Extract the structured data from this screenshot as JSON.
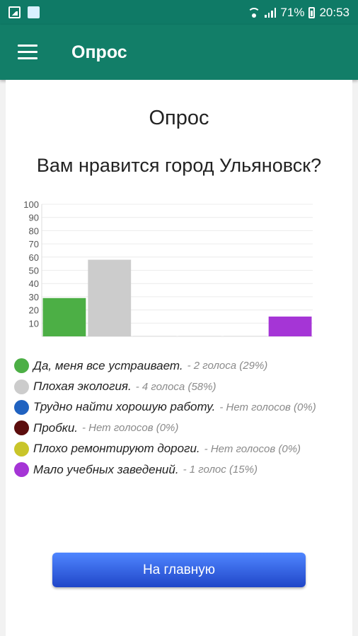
{
  "status_bar": {
    "battery": "71%",
    "time": "20:53",
    "icons": [
      "image-icon",
      "app-icon",
      "wifi-icon",
      "signal-icon",
      "battery-icon"
    ]
  },
  "app_bar": {
    "title": "Опрос",
    "menu_icon": "menu-icon"
  },
  "poll": {
    "title": "Опрос",
    "question": "Вам нравится город Ульяновск?"
  },
  "chart_data": {
    "type": "bar",
    "categories": [
      "Да, меня все устраивает.",
      "Плохая экология.",
      "Трудно найти хорошую работу.",
      "Пробки.",
      "Плохо ремонтируют дороги.",
      "Мало учебных заведений."
    ],
    "values": [
      29,
      58,
      0,
      0,
      0,
      15
    ],
    "colors": [
      "#4caf45",
      "#cccccc",
      "#2062c0",
      "#5c0d0d",
      "#c9c52a",
      "#a535d6"
    ],
    "ylim": [
      0,
      100
    ],
    "yticks": [
      "10",
      "20",
      "30",
      "40",
      "50",
      "60",
      "70",
      "80",
      "90",
      "100"
    ],
    "grid": true
  },
  "legend": [
    {
      "label": "Да, меня все устраивает.",
      "count": "- 2 голоса (29%)",
      "color": "#4caf45"
    },
    {
      "label": "Плохая экология.",
      "count": "- 4 голоса (58%)",
      "color": "#cccccc"
    },
    {
      "label": "Трудно найти хорошую работу.",
      "count": "- Нет голосов (0%)",
      "color": "#2062c0"
    },
    {
      "label": "Пробки.",
      "count": "- Нет голосов (0%)",
      "color": "#5c0d0d"
    },
    {
      "label": "Плохо ремонтируют дороги.",
      "count": "- Нет голосов (0%)",
      "color": "#c9c52a"
    },
    {
      "label": "Мало учебных заведений.",
      "count": "- 1 голос (15%)",
      "color": "#a535d6"
    }
  ],
  "home_button": {
    "label": "На главную"
  },
  "colors": {
    "app_bar": "#127e68",
    "status_bar": "#0f7a66",
    "button": "#2f5fe0"
  }
}
